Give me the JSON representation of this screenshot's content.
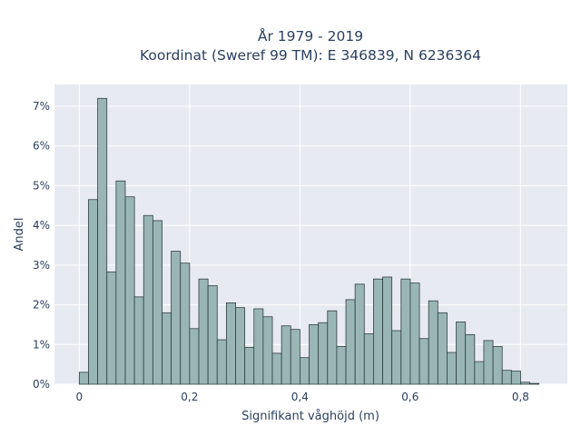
{
  "chart_data": {
    "type": "bar",
    "title_line1": "År 1979 - 2019",
    "title_line2": "Koordinat (Sweref 99 TM): E 346839, N 6236364",
    "xlabel": "Signifikant våghöjd (m)",
    "ylabel": "Andel",
    "xlim": [
      -0.045,
      0.885
    ],
    "ylim": [
      0,
      0.0755
    ],
    "x_ticks": [
      0,
      0.2,
      0.4,
      0.6,
      0.8
    ],
    "x_tick_labels": [
      "0",
      "0,2",
      "0,4",
      "0,6",
      "0,8"
    ],
    "y_ticks": [
      0,
      0.01,
      0.02,
      0.03,
      0.04,
      0.05,
      0.06,
      0.07
    ],
    "y_tick_labels": [
      "0%",
      "1%",
      "2%",
      "3%",
      "4%",
      "5%",
      "6%",
      "7%"
    ],
    "grid": true,
    "bin_width": 0.01667,
    "bin_start": 0.0,
    "values": [
      0.003,
      0.0465,
      0.072,
      0.0283,
      0.0512,
      0.0472,
      0.022,
      0.0425,
      0.0412,
      0.018,
      0.0335,
      0.0305,
      0.014,
      0.0265,
      0.0248,
      0.0112,
      0.0205,
      0.0193,
      0.0093,
      0.019,
      0.017,
      0.0078,
      0.0147,
      0.0138,
      0.0067,
      0.015,
      0.0155,
      0.0185,
      0.0095,
      0.0213,
      0.0252,
      0.0127,
      0.0265,
      0.027,
      0.0135,
      0.0265,
      0.0255,
      0.0115,
      0.021,
      0.018,
      0.008,
      0.0157,
      0.0125,
      0.0057,
      0.011,
      0.0095,
      0.0035,
      0.0033,
      0.0005,
      0.0002
    ],
    "colors": {
      "bar_fill": "#9ab5b5",
      "bar_stroke": "#2f3f3f",
      "plot_bg": "#e8eaf2",
      "grid": "#ffffff",
      "text": "#2a3f5f"
    }
  }
}
